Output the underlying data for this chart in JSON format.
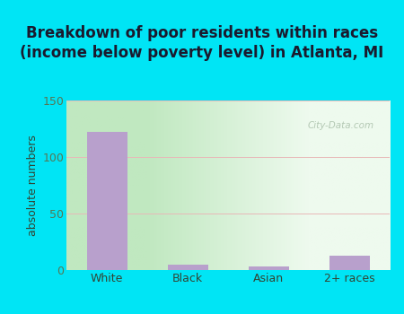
{
  "title": "Breakdown of poor residents within races\n(income below poverty level) in Atlanta, MI",
  "categories": [
    "White",
    "Black",
    "Asian",
    "2+ races"
  ],
  "values": [
    122,
    5,
    3,
    13
  ],
  "bar_color": "#b8a0cc",
  "bar_width": 0.5,
  "ylabel": "absolute numbers",
  "ylim": [
    0,
    150
  ],
  "yticks": [
    0,
    50,
    100,
    150
  ],
  "grid_color": "#e8b8b8",
  "bg_outer": "#00e5f5",
  "plot_bg_top_left": "#c8ecc8",
  "plot_bg_top_right": "#e8f8e8",
  "plot_bg_bottom_left": "#d8f0d0",
  "plot_bg_bottom_right": "#f5fff5",
  "title_fontsize": 12,
  "ylabel_fontsize": 9,
  "tick_fontsize": 9,
  "tick_color": "#557755",
  "watermark": "City-Data.com"
}
